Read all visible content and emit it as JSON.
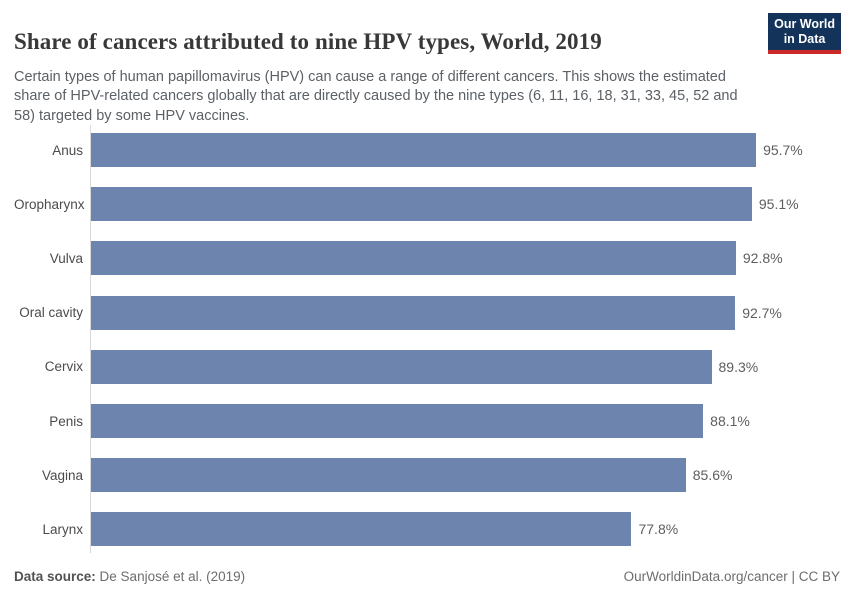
{
  "header": {
    "title": "Share of cancers attributed to nine HPV types, World, 2019",
    "subtitle": "Certain types of human papillomavirus (HPV) can cause a range of different cancers. This shows the estimated share of HPV-related cancers globally that are directly caused by the nine types (6, 11, 16, 18, 31, 33, 45, 52 and 58) targeted by some HPV vaccines.",
    "logo": {
      "line1": "Our World",
      "line2": "in Data"
    }
  },
  "chart_data": {
    "type": "bar",
    "orientation": "horizontal",
    "title": "Share of cancers attributed to nine HPV types, World, 2019",
    "categories": [
      "Anus",
      "Oropharynx",
      "Vulva",
      "Oral cavity",
      "Cervix",
      "Penis",
      "Vagina",
      "Larynx"
    ],
    "values": [
      95.7,
      95.1,
      92.8,
      92.7,
      89.3,
      88.1,
      85.6,
      77.8
    ],
    "value_labels": [
      "95.7%",
      "95.1%",
      "92.8%",
      "92.7%",
      "89.3%",
      "88.1%",
      "85.6%",
      "77.8%"
    ],
    "unit": "%",
    "xlabel": "",
    "ylabel": "",
    "xlim": [
      0,
      100
    ],
    "grid": false,
    "legend": false
  },
  "footer": {
    "datasource_label": "Data source:",
    "datasource_value": "De Sanjosé et al. (2019)",
    "credit": "OurWorldinData.org/cancer | CC BY"
  },
  "colors": {
    "bar": "#6d85ae",
    "logo_navy": "#14335a",
    "logo_red": "#cb2828",
    "axis_line": "#d9d9d9",
    "title_text": "#383838",
    "subtitle_text": "#5b6166"
  }
}
